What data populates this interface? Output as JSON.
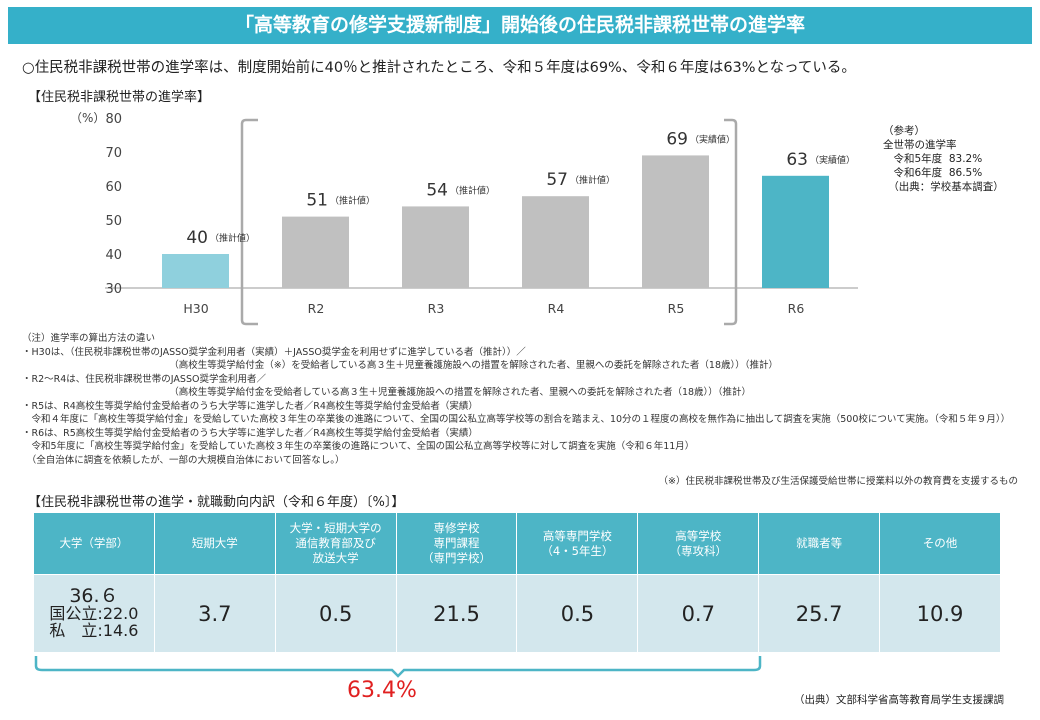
{
  "title": "「高等教育の修学支援新制度」開始後の住民税非課税世帯の進学率",
  "lead": "○住民税非課税世帯の進学率は、制度開始前に40％と推計されたところ、令和５年度は69%、令和６年度は63%となっている。",
  "chart_subtitle": "【住民税非課税世帯の進学率】",
  "chart_data": {
    "type": "bar",
    "ylabel": "（%）",
    "ylim": [
      30,
      80
    ],
    "yticks": [
      30,
      40,
      50,
      60,
      70,
      80
    ],
    "categories": [
      "H30",
      "R2",
      "R3",
      "R4",
      "R5",
      "R6"
    ],
    "values": [
      40,
      51,
      54,
      57,
      69,
      63
    ],
    "value_notes": [
      "（推計値）",
      "（推計値）",
      "（推計値）",
      "（推計値）",
      "（実績値）",
      "（実績値）"
    ],
    "colors": [
      "#8fd0dd",
      "#c0c0c0",
      "#c0c0c0",
      "#c0c0c0",
      "#c0c0c0",
      "#4db5c6"
    ],
    "grid": false,
    "bracket": "R2–R5"
  },
  "reference": "（参考）\n全世帯の進学率\n　令和5年度  83.2%\n　令和6年度  86.5%\n　（出典：学校基本調査）",
  "notes": "（注）進学率の算出方法の違い\n・H30は、（住民税非課税世帯のJASSO奨学金利用者（実績）＋JASSO奨学金を利用せずに進学している者（推計））／\n　　　　　　　　　　　　　　　　（高校生等奨学給付金（※）を受給者している高３生＋児童養護施設への措置を解除された者、里親への委託を解除された者（18歳））（推計）\n・R2～R4は、住民税非課税世帯のJASSO奨学金利用者／\n　　　　　　　　　　　　　　　　（高校生等奨学給付金を受給者している高３生＋児童養護施設への措置を解除された者、里親への委託を解除された者（18歳））（推計）\n・R5は、R4高校生等奨学給付金受給者のうち大学等に進学した者／R4高校生等奨学給付金受給者（実績）\n　令和４年度に「高校生等奨学給付金」を受給していた高校３年生の卒業後の進路について、全国の国公私立高等学校等の割合を踏まえ、10分の１程度の高校を無作為に抽出して調査を実施（500校について実施。（令和５年９月））\n・R6は、R5高校生等奨学給付金受給者のうち大学等に進学した者／R4高校生等奨学給付金受給者（実績）\n　令和5年度に「高校生等奨学給付金」を受給していた高校３年生の卒業後の進路について、全国の国公私立高等学校等に対して調査を実施（令和６年11月）\n　（全自治体に調査を依頼したが、一部の大規模自治体において回答なし。）",
  "footnote": "（※）住民税非課税世帯及び生活保護受給世帯に授業料以外の教育費を支援するもの",
  "table_subtitle": "【住民税非課税世帯の進学・就職動向内訳（令和６年度）〔%〕】",
  "table": {
    "headers": [
      "大学（学部）",
      "短期大学",
      "大学・短期大学の\n通信教育部及び\n放送大学",
      "専修学校\n専門課程\n（専門学校）",
      "高等専門学校\n（4・5年生）",
      "高等学校\n（専攻科）",
      "就職者等",
      "その他"
    ],
    "first_cell": {
      "total": "36.６",
      "sub1": "国公立:22.0",
      "sub2": "私　立:14.6"
    },
    "values": [
      "3.7",
      "0.5",
      "21.5",
      "0.5",
      "0.7",
      "25.7",
      "10.9"
    ]
  },
  "sum_label": "63.4%",
  "source": "（出典）文部科学省高等教育局学生支援課調"
}
